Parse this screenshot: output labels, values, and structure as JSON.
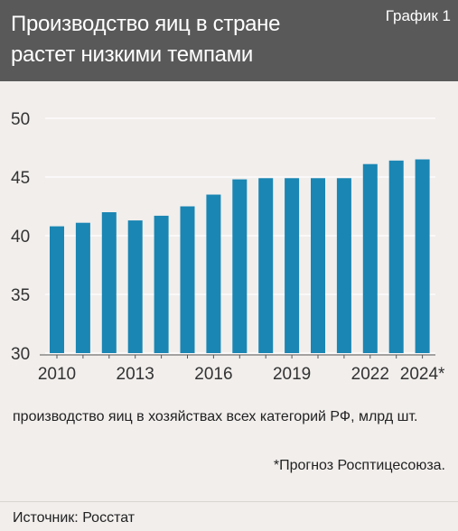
{
  "header": {
    "title_line1": "Производство яиц в стране",
    "title_line2": "растет низкими темпами",
    "badge": "График 1"
  },
  "note": "производство яиц в хозяйствах всех категорий РФ, млрд шт.",
  "footnote": "*Прогноз Росптицесоюза.",
  "source": "Источник: Росстат",
  "colors": {
    "bar": "#1a86b3",
    "header_bg": "#595959",
    "chart_bg": "#f1eeec"
  },
  "chart_data": {
    "type": "bar",
    "categories": [
      "2010",
      "2011",
      "2012",
      "2013",
      "2014",
      "2015",
      "2016",
      "2017",
      "2018",
      "2019",
      "2020",
      "2021",
      "2022",
      "2023",
      "2024*"
    ],
    "values": [
      40.8,
      41.1,
      42.0,
      41.3,
      41.7,
      42.5,
      43.5,
      44.8,
      44.9,
      44.9,
      44.9,
      44.9,
      46.1,
      46.4,
      46.5
    ],
    "x_tick_labels": [
      "2010",
      "2013",
      "2016",
      "2019",
      "2022",
      "2024*"
    ],
    "y_tick_labels": [
      "30",
      "35",
      "40",
      "45",
      "50"
    ],
    "ylim": [
      30,
      50
    ],
    "grid": true,
    "title": "",
    "xlabel": "",
    "ylabel": ""
  }
}
